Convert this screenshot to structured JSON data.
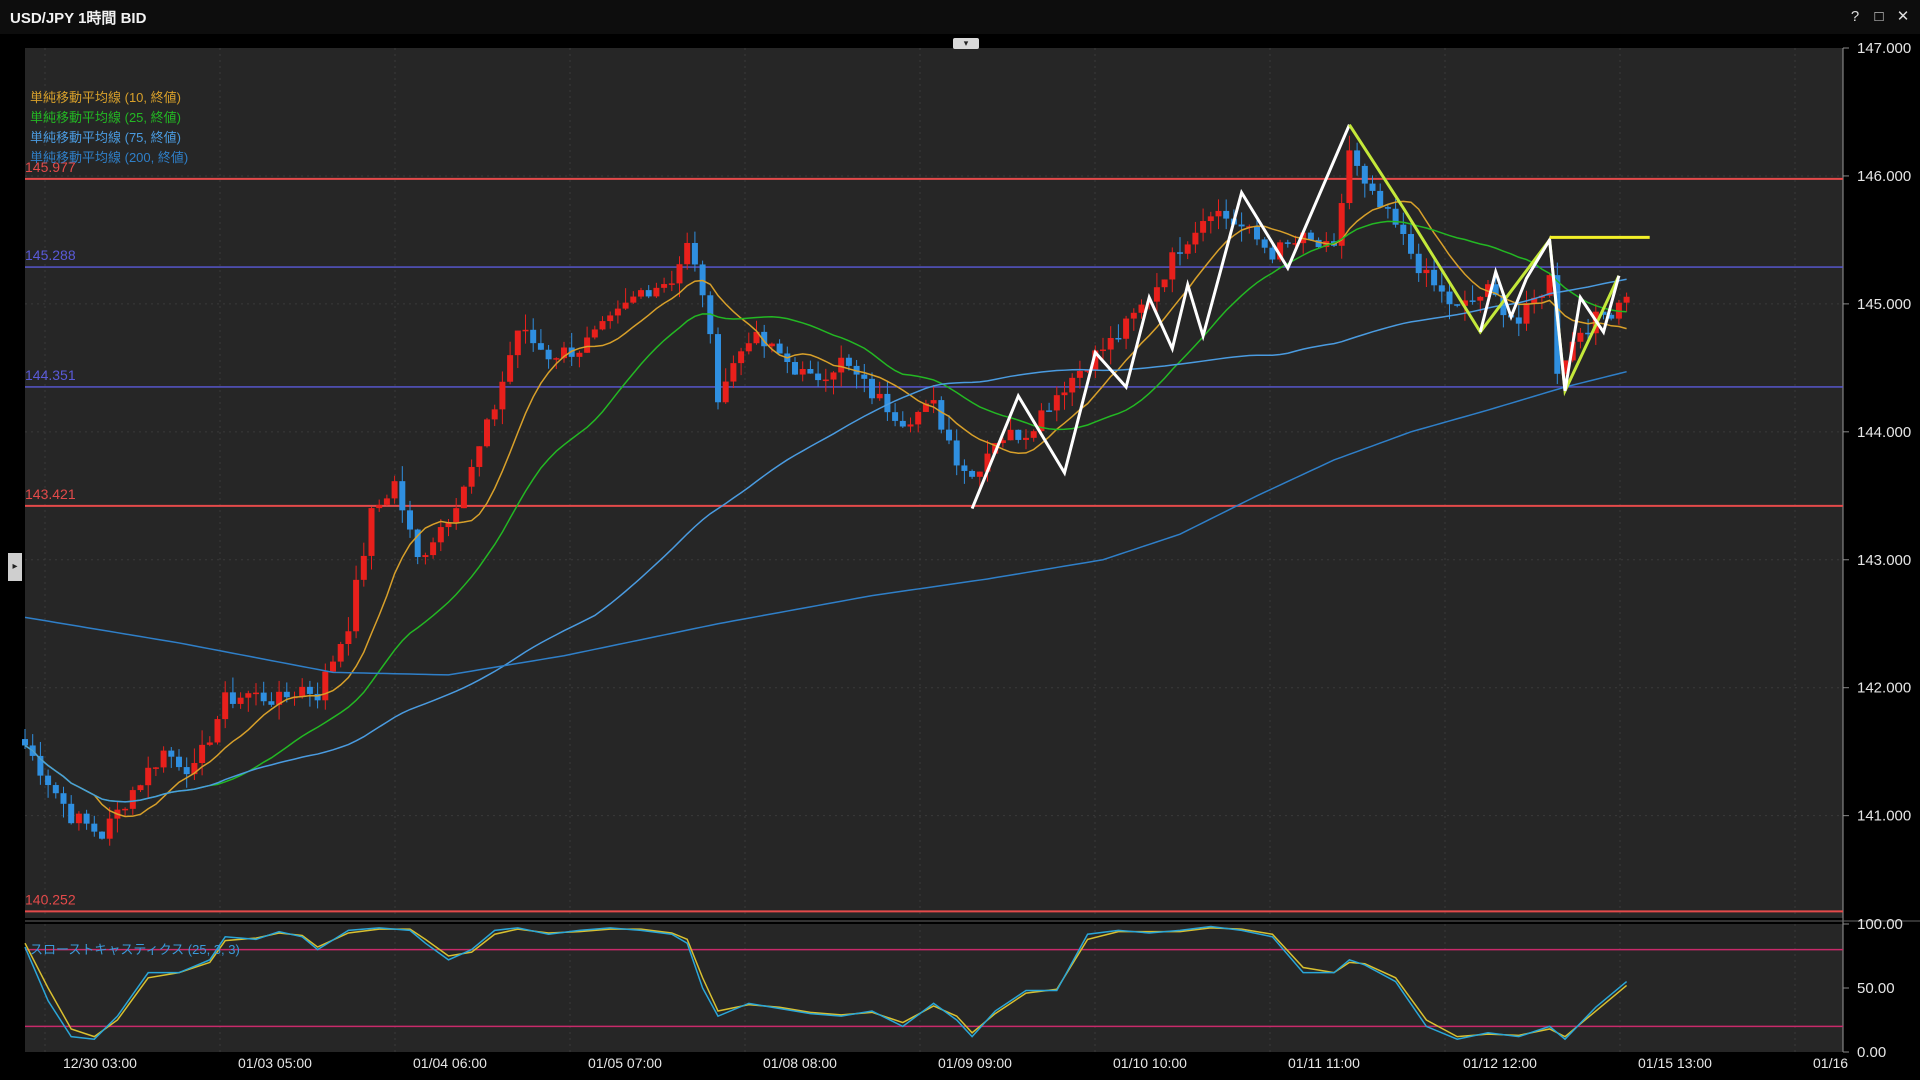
{
  "window": {
    "title": "USD/JPY 1時間 BID",
    "help_label": "?",
    "maximize_label": "□",
    "close_label": "✕"
  },
  "collapse_tab": {
    "icon": "chevron-down-icon",
    "glyph": "▾"
  },
  "side_handle": {
    "icon": "chevron-right-icon",
    "glyph": "▸"
  },
  "colors": {
    "background": "#262626",
    "up_candle": "#e8201c",
    "down_candle": "#2f8fe0",
    "sma10": "#d8a02a",
    "sma25": "#23b823",
    "sma75": "#4a9be0",
    "sma200": "#2f7fc8",
    "level_red": "#e44a4a",
    "level_blue": "#5a5ad8",
    "trend_white": "#ffffff",
    "trend_yellow": "#f3f028",
    "trend_lime": "#c4e83a",
    "stoch_k": "#2aa6d8",
    "stoch_d": "#d8c030",
    "stoch_band": "#c82a6a"
  },
  "legend": [
    {
      "label": "単純移動平均線 (10, 終値)",
      "color": "#d8a02a"
    },
    {
      "label": "単純移動平均線 (25, 終値)",
      "color": "#23b823"
    },
    {
      "label": "単純移動平均線 (75, 終値)",
      "color": "#4a9be0"
    },
    {
      "label": "単純移動平均線 (200, 終値)",
      "color": "#2f7fc8"
    }
  ],
  "oscillator_legend": "スローストキャスティクス (25, 3, 3)",
  "chart_data": {
    "type": "candlestick",
    "instrument": "USD/JPY",
    "timeframe": "1時間",
    "price_type": "BID",
    "ylim": [
      140.2,
      147.0
    ],
    "y_ticks": [
      "147.000",
      "146.000",
      "145.000",
      "144.000",
      "143.000",
      "142.000",
      "141.000"
    ],
    "x_ticks": [
      "12/30 03:00",
      "01/03 05:00",
      "01/04 06:00",
      "01/05 07:00",
      "01/08 08:00",
      "01/09 09:00",
      "01/10 10:00",
      "01/11 11:00",
      "01/12 12:00",
      "01/15 13:00",
      "01/16"
    ],
    "levels": [
      {
        "label": "145.977",
        "value": 145.977,
        "color": "red"
      },
      {
        "label": "145.288",
        "value": 145.288,
        "color": "blue"
      },
      {
        "label": "144.351",
        "value": 144.351,
        "color": "blue"
      },
      {
        "label": "143.421",
        "value": 143.421,
        "color": "red"
      },
      {
        "label": "140.252",
        "value": 140.252,
        "color": "red"
      }
    ],
    "close_path": [
      [
        0,
        141.55
      ],
      [
        6,
        141.0
      ],
      [
        10,
        140.85
      ],
      [
        14,
        141.2
      ],
      [
        18,
        141.5
      ],
      [
        22,
        141.35
      ],
      [
        26,
        141.9
      ],
      [
        29,
        141.95
      ],
      [
        33,
        141.9
      ],
      [
        36,
        142.0
      ],
      [
        38,
        141.95
      ],
      [
        42,
        142.5
      ],
      [
        45,
        143.35
      ],
      [
        48,
        143.6
      ],
      [
        51,
        143.0
      ],
      [
        55,
        143.35
      ],
      [
        58,
        143.7
      ],
      [
        61,
        144.2
      ],
      [
        64,
        144.8
      ],
      [
        68,
        144.6
      ],
      [
        72,
        144.65
      ],
      [
        76,
        144.85
      ],
      [
        80,
        145.1
      ],
      [
        84,
        145.2
      ],
      [
        86,
        145.45
      ],
      [
        88,
        145.1
      ],
      [
        90,
        144.3
      ],
      [
        94,
        144.75
      ],
      [
        98,
        144.6
      ],
      [
        102,
        144.4
      ],
      [
        106,
        144.55
      ],
      [
        110,
        144.3
      ],
      [
        114,
        144.1
      ],
      [
        118,
        144.2
      ],
      [
        121,
        143.8
      ],
      [
        123,
        143.65
      ],
      [
        126,
        143.95
      ],
      [
        130,
        144.0
      ],
      [
        134,
        144.3
      ],
      [
        138,
        144.55
      ],
      [
        142,
        144.75
      ],
      [
        146,
        145.05
      ],
      [
        150,
        145.45
      ],
      [
        154,
        145.75
      ],
      [
        158,
        145.6
      ],
      [
        162,
        145.4
      ],
      [
        166,
        145.5
      ],
      [
        170,
        145.4
      ],
      [
        172,
        146.2
      ],
      [
        174,
        145.9
      ],
      [
        178,
        145.6
      ],
      [
        182,
        145.2
      ],
      [
        186,
        144.95
      ],
      [
        190,
        145.1
      ],
      [
        194,
        144.85
      ],
      [
        198,
        145.2
      ],
      [
        199,
        144.5
      ],
      [
        202,
        144.8
      ],
      [
        206,
        144.95
      ],
      [
        208,
        145.1
      ]
    ],
    "n_bars": 209,
    "series": [
      {
        "name": "単純移動平均線 (10, 終値)",
        "period": 10
      },
      {
        "name": "単純移動平均線 (25, 終値)",
        "period": 25
      },
      {
        "name": "単純移動平均線 (75, 終値)",
        "period": 75
      },
      {
        "name": "単純移動平均線 (200, 終値)",
        "points": [
          [
            0,
            142.55
          ],
          [
            20,
            142.35
          ],
          [
            40,
            142.12
          ],
          [
            55,
            142.1
          ],
          [
            70,
            142.25
          ],
          [
            90,
            142.5
          ],
          [
            110,
            142.72
          ],
          [
            125,
            142.85
          ],
          [
            140,
            143.0
          ],
          [
            150,
            143.2
          ],
          [
            160,
            143.5
          ],
          [
            170,
            143.78
          ],
          [
            180,
            144.0
          ],
          [
            190,
            144.17
          ],
          [
            200,
            144.35
          ],
          [
            208,
            144.47
          ]
        ]
      }
    ],
    "trendlines": [
      {
        "color": "white",
        "points": [
          [
            123,
            143.4
          ],
          [
            129,
            144.28
          ],
          [
            135,
            143.68
          ],
          [
            139,
            144.62
          ],
          [
            143,
            144.35
          ],
          [
            146,
            145.05
          ],
          [
            149,
            144.65
          ],
          [
            151,
            145.15
          ],
          [
            153,
            144.75
          ],
          [
            158,
            145.87
          ],
          [
            164,
            145.28
          ],
          [
            172,
            146.4
          ]
        ]
      },
      {
        "color": "lime",
        "points": [
          [
            172,
            146.4
          ],
          [
            179,
            145.75
          ],
          [
            189,
            144.78
          ],
          [
            198,
            145.5
          ],
          [
            200,
            144.32
          ],
          [
            207,
            145.22
          ]
        ]
      },
      {
        "color": "white",
        "points": [
          [
            189,
            144.78
          ],
          [
            191,
            145.25
          ],
          [
            193,
            144.9
          ],
          [
            195,
            145.2
          ],
          [
            198,
            145.5
          ],
          [
            200,
            144.32
          ],
          [
            202,
            145.05
          ],
          [
            205,
            144.78
          ],
          [
            207,
            145.22
          ]
        ]
      },
      {
        "color": "yellow",
        "points": [
          [
            198,
            145.52
          ],
          [
            211,
            145.52
          ]
        ]
      }
    ],
    "oscillator": {
      "name": "スローストキャスティクス (25, 3, 3)",
      "ylim": [
        0,
        100
      ],
      "y_ticks": [
        "100.00",
        "50.00",
        "0.00"
      ],
      "bands": [
        80,
        20
      ],
      "k_points": [
        [
          0,
          82
        ],
        [
          3,
          40
        ],
        [
          6,
          12
        ],
        [
          9,
          10
        ],
        [
          12,
          28
        ],
        [
          16,
          62
        ],
        [
          20,
          62
        ],
        [
          24,
          72
        ],
        [
          26,
          90
        ],
        [
          30,
          88
        ],
        [
          33,
          94
        ],
        [
          36,
          90
        ],
        [
          38,
          80
        ],
        [
          42,
          95
        ],
        [
          46,
          97
        ],
        [
          50,
          95
        ],
        [
          52,
          85
        ],
        [
          55,
          72
        ],
        [
          58,
          80
        ],
        [
          61,
          95
        ],
        [
          64,
          97
        ],
        [
          68,
          92
        ],
        [
          72,
          95
        ],
        [
          76,
          97
        ],
        [
          80,
          95
        ],
        [
          84,
          92
        ],
        [
          86,
          85
        ],
        [
          88,
          50
        ],
        [
          90,
          28
        ],
        [
          94,
          38
        ],
        [
          98,
          34
        ],
        [
          102,
          30
        ],
        [
          106,
          28
        ],
        [
          110,
          32
        ],
        [
          114,
          20
        ],
        [
          118,
          38
        ],
        [
          121,
          25
        ],
        [
          123,
          12
        ],
        [
          126,
          32
        ],
        [
          130,
          48
        ],
        [
          134,
          48
        ],
        [
          138,
          92
        ],
        [
          142,
          95
        ],
        [
          146,
          93
        ],
        [
          150,
          95
        ],
        [
          154,
          98
        ],
        [
          158,
          95
        ],
        [
          162,
          90
        ],
        [
          166,
          62
        ],
        [
          170,
          62
        ],
        [
          172,
          72
        ],
        [
          174,
          68
        ],
        [
          178,
          55
        ],
        [
          182,
          20
        ],
        [
          186,
          10
        ],
        [
          190,
          15
        ],
        [
          194,
          12
        ],
        [
          198,
          20
        ],
        [
          200,
          10
        ],
        [
          204,
          35
        ],
        [
          208,
          55
        ]
      ],
      "d_points": [
        [
          0,
          85
        ],
        [
          3,
          50
        ],
        [
          6,
          18
        ],
        [
          9,
          12
        ],
        [
          12,
          25
        ],
        [
          16,
          58
        ],
        [
          20,
          62
        ],
        [
          24,
          70
        ],
        [
          26,
          87
        ],
        [
          30,
          89
        ],
        [
          33,
          93
        ],
        [
          36,
          91
        ],
        [
          38,
          82
        ],
        [
          42,
          93
        ],
        [
          46,
          96
        ],
        [
          50,
          96
        ],
        [
          52,
          88
        ],
        [
          55,
          75
        ],
        [
          58,
          78
        ],
        [
          61,
          92
        ],
        [
          64,
          96
        ],
        [
          68,
          93
        ],
        [
          72,
          94
        ],
        [
          76,
          96
        ],
        [
          80,
          96
        ],
        [
          84,
          93
        ],
        [
          86,
          88
        ],
        [
          88,
          58
        ],
        [
          90,
          32
        ],
        [
          94,
          37
        ],
        [
          98,
          35
        ],
        [
          102,
          31
        ],
        [
          106,
          29
        ],
        [
          110,
          31
        ],
        [
          114,
          23
        ],
        [
          118,
          36
        ],
        [
          121,
          28
        ],
        [
          123,
          15
        ],
        [
          126,
          30
        ],
        [
          130,
          46
        ],
        [
          134,
          49
        ],
        [
          138,
          88
        ],
        [
          142,
          94
        ],
        [
          146,
          94
        ],
        [
          150,
          94
        ],
        [
          154,
          97
        ],
        [
          158,
          96
        ],
        [
          162,
          92
        ],
        [
          166,
          66
        ],
        [
          170,
          62
        ],
        [
          172,
          70
        ],
        [
          174,
          69
        ],
        [
          178,
          58
        ],
        [
          182,
          25
        ],
        [
          186,
          12
        ],
        [
          190,
          14
        ],
        [
          194,
          13
        ],
        [
          198,
          18
        ],
        [
          200,
          12
        ],
        [
          204,
          32
        ],
        [
          208,
          52
        ]
      ]
    }
  }
}
